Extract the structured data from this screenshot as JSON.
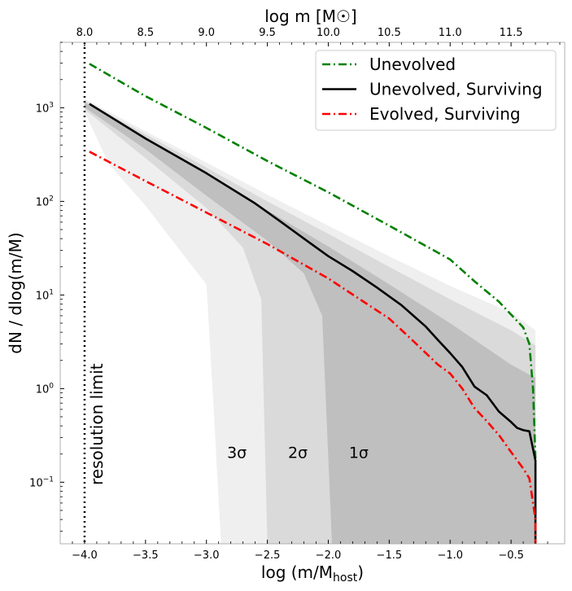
{
  "chart_data": {
    "type": "line",
    "top_axis_label": "log m [M☉]",
    "xlabel": "log (m/M",
    "xlabel_sub": "host",
    "xlabel_close": ")",
    "ylabel": "dN / dlog(m/M)",
    "x_scale": "linear",
    "y_scale": "log",
    "xlim": [
      -4.2,
      -0.06
    ],
    "ylim": [
      0.022,
      5000
    ],
    "xticks": [
      -4.0,
      -3.5,
      -3.0,
      -2.5,
      -2.0,
      -1.5,
      -1.0,
      -0.5
    ],
    "xtick_labels": [
      "−4.0",
      "−3.5",
      "−3.0",
      "−2.5",
      "−2.0",
      "−1.5",
      "−1.0",
      "−0.5"
    ],
    "top_xticks": [
      8.0,
      8.5,
      9.0,
      9.5,
      10.0,
      10.5,
      11.0,
      11.5
    ],
    "top_xtick_labels": [
      "8.0",
      "8.5",
      "9.0",
      "9.5",
      "10.0",
      "10.5",
      "11.0",
      "11.5"
    ],
    "top_axis_offset": 12.0,
    "yticks_exp": [
      -1,
      0,
      1,
      2,
      3
    ],
    "ytick_base": "10",
    "ytick_exps": [
      "−1",
      "0",
      "1",
      "2",
      "3"
    ],
    "resolution_limit": {
      "x": -4.0,
      "label": "resolution limit"
    },
    "sigma_labels": [
      {
        "text": "3σ",
        "x": -2.75,
        "y": 0.21
      },
      {
        "text": "2σ",
        "x": -2.25,
        "y": 0.21
      },
      {
        "text": "1σ",
        "x": -1.75,
        "y": 0.21
      }
    ],
    "bands": [
      {
        "level": "3sigma",
        "color": "#efefef",
        "upper": [
          [
            -4.0,
            1250
          ],
          [
            -3.5,
            560
          ],
          [
            -3.0,
            260
          ],
          [
            -2.5,
            118
          ],
          [
            -2.0,
            55
          ],
          [
            -1.5,
            26
          ],
          [
            -1.0,
            12.5
          ],
          [
            -0.5,
            6.5
          ],
          [
            -0.3,
            4.2
          ]
        ],
        "lower": [
          [
            -4.0,
            900
          ],
          [
            -3.8,
            250
          ],
          [
            -3.5,
            90
          ],
          [
            -3.2,
            28
          ],
          [
            -3.0,
            13
          ],
          [
            -2.95,
            1.0
          ],
          [
            -2.88,
            0.01
          ]
        ],
        "x_floor": -0.3
      },
      {
        "level": "2sigma",
        "color": "#dadada",
        "upper": [
          [
            -4.0,
            1190
          ],
          [
            -3.5,
            520
          ],
          [
            -3.0,
            230
          ],
          [
            -2.5,
            100
          ],
          [
            -2.0,
            45
          ],
          [
            -1.5,
            20
          ],
          [
            -1.0,
            9
          ],
          [
            -0.5,
            4.2
          ],
          [
            -0.3,
            2.9
          ]
        ],
        "lower": [
          [
            -4.0,
            960
          ],
          [
            -3.5,
            290
          ],
          [
            -3.0,
            85
          ],
          [
            -2.7,
            32
          ],
          [
            -2.55,
            9
          ],
          [
            -2.5,
            0.01
          ]
        ],
        "x_floor": -0.3
      },
      {
        "level": "1sigma",
        "color": "#bfbfbf",
        "upper": [
          [
            -4.0,
            1140
          ],
          [
            -3.5,
            480
          ],
          [
            -3.0,
            200
          ],
          [
            -2.5,
            80
          ],
          [
            -2.0,
            33
          ],
          [
            -1.5,
            13
          ],
          [
            -1.0,
            5
          ],
          [
            -0.5,
            1.8
          ],
          [
            -0.3,
            1.3
          ]
        ],
        "lower": [
          [
            -4.0,
            1010
          ],
          [
            -3.5,
            360
          ],
          [
            -3.0,
            115
          ],
          [
            -2.5,
            38
          ],
          [
            -2.2,
            17
          ],
          [
            -2.05,
            6
          ],
          [
            -1.97,
            0.01
          ]
        ],
        "x_floor": -0.3
      }
    ],
    "series": [
      {
        "name": "Unevolved",
        "color": "#008000",
        "dash": "dashdot",
        "points": [
          [
            -3.96,
            2950
          ],
          [
            -3.5,
            1330
          ],
          [
            -3.0,
            610
          ],
          [
            -2.5,
            270
          ],
          [
            -2.0,
            125
          ],
          [
            -1.5,
            55
          ],
          [
            -1.0,
            24
          ],
          [
            -0.8,
            14
          ],
          [
            -0.6,
            8.5
          ],
          [
            -0.4,
            4.5
          ],
          [
            -0.35,
            3.0
          ],
          [
            -0.32,
            1.0
          ],
          [
            -0.3,
            0.18
          ]
        ]
      },
      {
        "name": "Unevolved, Surviving",
        "color": "#000000",
        "dash": "solid",
        "points": [
          [
            -3.96,
            1100
          ],
          [
            -3.5,
            470
          ],
          [
            -3.0,
            200
          ],
          [
            -2.6,
            95
          ],
          [
            -2.4,
            62
          ],
          [
            -2.2,
            40
          ],
          [
            -2.0,
            26
          ],
          [
            -1.8,
            18
          ],
          [
            -1.6,
            12
          ],
          [
            -1.4,
            7.8
          ],
          [
            -1.2,
            4.6
          ],
          [
            -1.1,
            3.3
          ],
          [
            -1.0,
            2.4
          ],
          [
            -0.9,
            1.7
          ],
          [
            -0.8,
            1.05
          ],
          [
            -0.7,
            0.85
          ],
          [
            -0.6,
            0.57
          ],
          [
            -0.5,
            0.44
          ],
          [
            -0.45,
            0.38
          ],
          [
            -0.4,
            0.36
          ],
          [
            -0.35,
            0.35
          ],
          [
            -0.3,
            0.17
          ],
          [
            -0.3,
            0.01
          ]
        ]
      },
      {
        "name": "Evolved, Surviving",
        "color": "#ff0000",
        "dash": "dashdot",
        "points": [
          [
            -3.96,
            340
          ],
          [
            -3.5,
            165
          ],
          [
            -3.0,
            76
          ],
          [
            -2.5,
            35
          ],
          [
            -2.0,
            15
          ],
          [
            -1.5,
            5.6
          ],
          [
            -1.3,
            3.2
          ],
          [
            -1.1,
            1.8
          ],
          [
            -1.0,
            1.45
          ],
          [
            -0.9,
            1.0
          ],
          [
            -0.8,
            0.62
          ],
          [
            -0.7,
            0.45
          ],
          [
            -0.6,
            0.32
          ],
          [
            -0.5,
            0.21
          ],
          [
            -0.4,
            0.14
          ],
          [
            -0.35,
            0.11
          ],
          [
            -0.3,
            0.04
          ],
          [
            -0.3,
            0.01
          ]
        ]
      }
    ]
  }
}
